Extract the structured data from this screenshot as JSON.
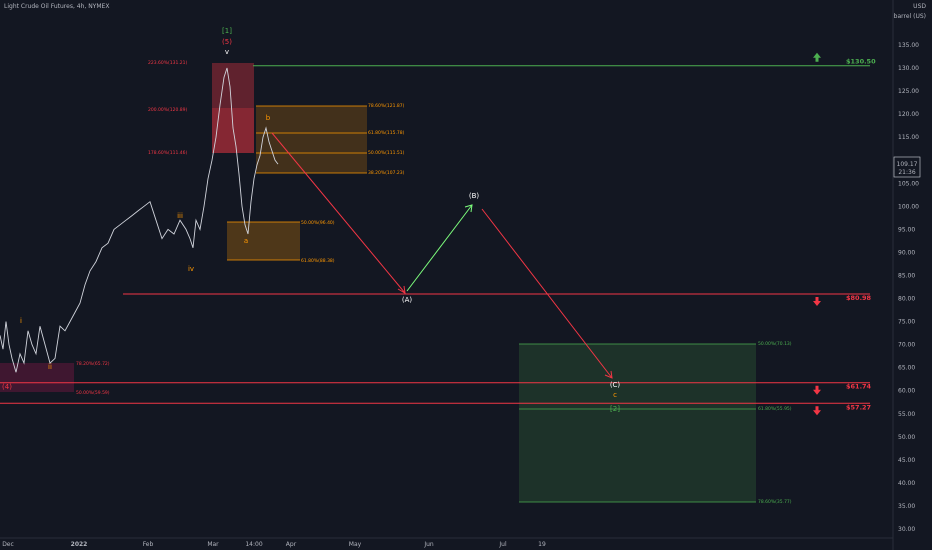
{
  "header": {
    "instrument": "Light Crude Oil Futures, 4h, NYMEX"
  },
  "price_axis": {
    "currency": "USD",
    "unit": "barrel (US)",
    "last_price": "109.17",
    "countdown": "21:36"
  },
  "chart_data": {
    "type": "line",
    "title": "Light Crude Oil Futures, 4h, NYMEX",
    "y_ticks": [
      "135.00",
      "130.00",
      "125.00",
      "120.00",
      "115.00",
      "110.00",
      "105.00",
      "100.00",
      "95.00",
      "90.00",
      "85.00",
      "80.00",
      "75.00",
      "70.00",
      "65.00",
      "60.00",
      "55.00",
      "50.00",
      "45.00",
      "40.00",
      "35.00",
      "30.00"
    ],
    "ylim": [
      29,
      138
    ],
    "x_ticks": [
      "Dec",
      "2022",
      "Feb",
      "Mar",
      "14:00",
      "Apr",
      "May",
      "Jun",
      "Jul",
      "19"
    ],
    "price_series": {
      "x": [
        0,
        3,
        6,
        9,
        12,
        16,
        20,
        24,
        28,
        32,
        36,
        40,
        45,
        50,
        55,
        60,
        65,
        70,
        75,
        80,
        85,
        90,
        96,
        102,
        108,
        114,
        120,
        126,
        132,
        138,
        144,
        150,
        156,
        162,
        168,
        174,
        180,
        186,
        190,
        193,
        196,
        200,
        204,
        208,
        212,
        216,
        220,
        224,
        227,
        230,
        233,
        236,
        239,
        242,
        245,
        248,
        251,
        254,
        257,
        260,
        263,
        266,
        269,
        272,
        275,
        278
      ],
      "y": [
        72,
        69,
        75,
        70,
        67,
        64,
        68,
        66,
        73,
        70,
        68,
        74,
        70,
        66,
        67,
        74,
        73,
        75,
        77,
        79,
        83,
        86,
        88,
        91,
        92,
        95,
        96,
        97,
        98,
        99,
        100,
        101,
        97,
        93,
        95,
        94,
        97,
        95,
        93,
        91,
        97,
        95,
        100,
        106,
        110,
        115,
        122,
        128,
        130,
        126,
        117,
        113,
        107,
        100,
        96,
        94,
        101,
        106,
        109,
        111,
        115,
        117,
        114,
        112,
        110,
        109.17
      ]
    },
    "levels": [
      {
        "label": "$130.50",
        "value": 130.5,
        "color": "#4caf50",
        "arrow": "up"
      },
      {
        "label": "$80.98",
        "value": 80.98,
        "color": "#f23645",
        "arrow": "down"
      },
      {
        "label": "$61.74",
        "value": 61.74,
        "color": "#f23645",
        "arrow": "down"
      },
      {
        "label": "$57.27",
        "value": 57.27,
        "color": "#f23645",
        "arrow": "down"
      }
    ],
    "fib_labels": [
      {
        "text": "223.60%(131.21)",
        "value": 131.21,
        "color": "#f23645"
      },
      {
        "text": "200.00%(120.89)",
        "value": 120.89,
        "color": "#f23645"
      },
      {
        "text": "178.60%(111.46)",
        "value": 111.46,
        "color": "#f23645"
      },
      {
        "text": "78.60%(121.87)",
        "value": 121.87,
        "color": "#ff9800"
      },
      {
        "text": "61.80%(115.78)",
        "value": 115.78,
        "color": "#ff9800"
      },
      {
        "text": "50.00%(111.51)",
        "value": 111.51,
        "color": "#ff9800"
      },
      {
        "text": "38.20%(107.23)",
        "value": 107.23,
        "color": "#ff9800"
      },
      {
        "text": "50.00%(96.40)",
        "value": 96.4,
        "color": "#ff9800"
      },
      {
        "text": "61.80%(88.38)",
        "value": 88.38,
        "color": "#ff9800"
      },
      {
        "text": "78.20%(65.72)",
        "value": 65.72,
        "color": "#f23645"
      },
      {
        "text": "50.00%(59.59)",
        "value": 59.59,
        "color": "#f23645"
      },
      {
        "text": "50.00%(70.13)",
        "value": 70.13,
        "color": "#4caf50"
      },
      {
        "text": "61.80%(55.95)",
        "value": 55.95,
        "color": "#4caf50"
      },
      {
        "text": "78.60%(35.77)",
        "value": 35.77,
        "color": "#4caf50"
      }
    ],
    "wave_labels": [
      {
        "text": "[1]",
        "color": "#4caf50"
      },
      {
        "text": "(5)",
        "color": "#f23645"
      },
      {
        "text": "v",
        "color": "#ffffff"
      },
      {
        "text": "b",
        "color": "#ff9800"
      },
      {
        "text": "a",
        "color": "#ff9800"
      },
      {
        "text": "iii",
        "color": "#ff9800"
      },
      {
        "text": "iv",
        "color": "#ff9800"
      },
      {
        "text": "i",
        "color": "#ff9800"
      },
      {
        "text": "ii",
        "color": "#ff9800"
      },
      {
        "text": "(4)",
        "color": "#f23645"
      },
      {
        "text": "(A)",
        "color": "#ffffff"
      },
      {
        "text": "(B)",
        "color": "#ffffff"
      },
      {
        "text": "(C)",
        "color": "#ffffff"
      },
      {
        "text": "c",
        "color": "#ff9800"
      },
      {
        "text": "[2]",
        "color": "#4caf50"
      }
    ],
    "projection": [
      {
        "from": "b",
        "to": "(A)",
        "color": "#f23645"
      },
      {
        "from": "(A)",
        "to": "(B)",
        "color": "#7cfc7c"
      },
      {
        "from": "(B)",
        "to": "(C)",
        "color": "#f23645"
      }
    ],
    "colors": {
      "background": "#131722",
      "price_line": "#d1d4dc",
      "bearish": "#f23645",
      "bullish": "#4caf50",
      "fib_orange": "#ff9800"
    },
    "grid": false
  }
}
